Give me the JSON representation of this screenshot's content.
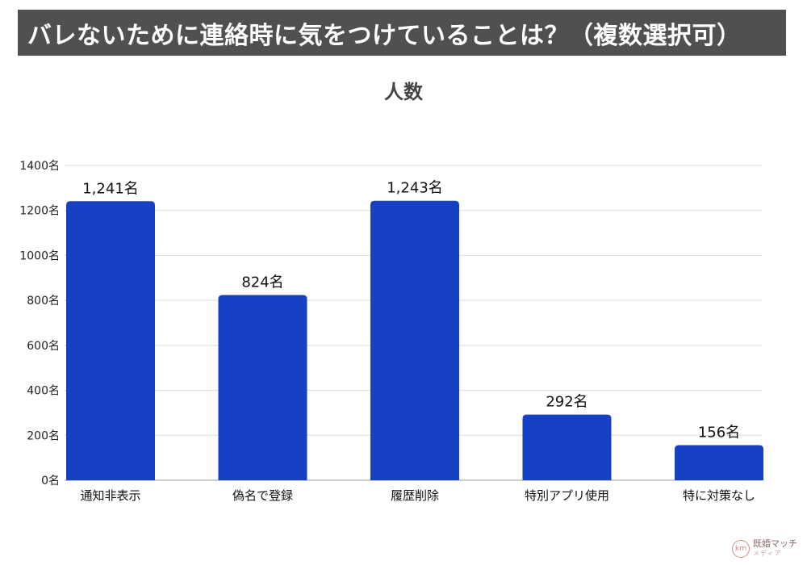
{
  "header": {
    "title": "バレないために連絡時に気をつけていることは？（複数選択可）"
  },
  "chart_data": {
    "type": "bar",
    "title": "人数",
    "categories": [
      "通知非表示",
      "偽名で登録",
      "履歴削除",
      "特別アプリ使用",
      "特に対策なし"
    ],
    "series": [
      {
        "values": [
          1241,
          824,
          1243,
          292,
          156
        ]
      }
    ],
    "data_labels": [
      "1,241名",
      "824名",
      "1,243名",
      "292名",
      "156名"
    ],
    "ylim": [
      0,
      1400
    ],
    "y_ticks": [
      0,
      200,
      400,
      600,
      800,
      1000,
      1200,
      1400
    ],
    "y_tick_labels": [
      "0名",
      "200名",
      "400名",
      "600名",
      "800名",
      "1000名",
      "1200名",
      "1400名"
    ],
    "grid": true,
    "bar_color": "#1741c5"
  },
  "watermark": {
    "logo_text": "km",
    "name": "既婚マッチ",
    "sub": "メディア"
  }
}
